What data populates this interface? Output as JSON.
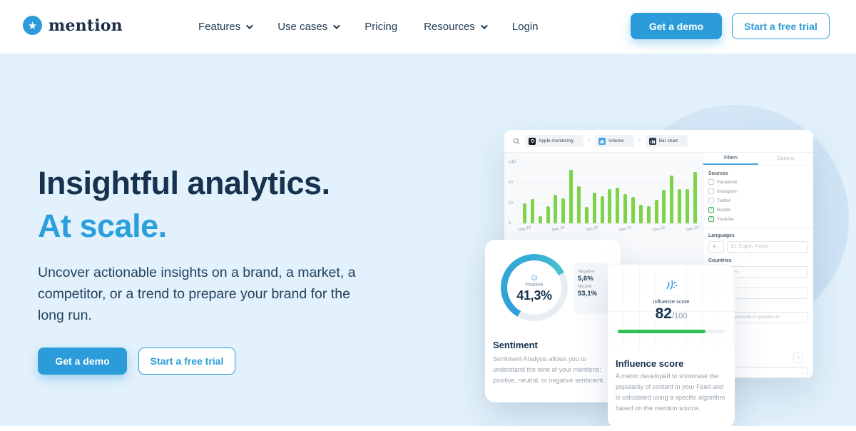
{
  "brand": {
    "name": "mention"
  },
  "nav": {
    "items": [
      {
        "label": "Features",
        "dropdown": true
      },
      {
        "label": "Use cases",
        "dropdown": true
      },
      {
        "label": "Pricing",
        "dropdown": false
      },
      {
        "label": "Resources",
        "dropdown": true
      },
      {
        "label": "Login",
        "dropdown": false
      }
    ]
  },
  "header": {
    "demo_button": "Get a demo",
    "trial_button": "Start a free trial"
  },
  "hero": {
    "title_line1": "Insightful analytics.",
    "title_line2": "At scale.",
    "description": "Uncover actionable insights on a brand, a market, a competitor, or a trend to prepare your brand for the long run.",
    "demo_button": "Get a demo",
    "trial_button": "Start a free trial"
  },
  "dashboard": {
    "chips": [
      {
        "label": "Apple monitoring",
        "glyph": "ring",
        "color": "#1b1f24"
      },
      {
        "label": "Volume",
        "glyph": "bars",
        "color": "#4da3e3"
      },
      {
        "label": "Bar chart",
        "glyph": "bars",
        "color": "#2c3e50"
      }
    ],
    "chip_separators": [
      "+",
      "="
    ],
    "panel": {
      "tabs": [
        {
          "label": "Filters",
          "active": true
        },
        {
          "label": "Options",
          "active": false
        }
      ],
      "sources_title": "Sources",
      "sources": [
        {
          "label": "Facebook",
          "checked": false
        },
        {
          "label": "Instagram",
          "checked": false
        },
        {
          "label": "Twitter",
          "checked": false
        },
        {
          "label": "Reddit",
          "checked": true
        },
        {
          "label": "Youtube",
          "checked": true
        }
      ],
      "languages_title": "Languages",
      "languages_placeholder": "Ex. English, French",
      "countries_title": "Countries",
      "countries_value": "United States",
      "tags_placeholder": "tags",
      "keyword_placeholder": "ed, or an expression in quotation m"
    },
    "chart_data": {
      "type": "bar",
      "title": "Volume",
      "x": [
        "Dec 18",
        "Dec 19",
        "Dec 20",
        "Dec 21",
        "Dec 22",
        "Dec 23"
      ],
      "values": [
        20,
        24,
        7,
        17,
        28,
        25,
        53,
        37,
        16,
        30,
        27,
        34,
        35,
        29,
        26,
        18,
        17,
        23,
        33,
        47,
        34,
        34,
        51
      ],
      "ylim": [
        0,
        60
      ],
      "yticks": [
        0,
        20,
        40,
        60
      ],
      "bar_color": "#7ed348",
      "grid": true,
      "legend": "none",
      "xlabel": "",
      "ylabel": ""
    }
  },
  "sentiment_card": {
    "donut": {
      "label": "Positive",
      "value": "41,3%"
    },
    "stats": [
      {
        "label": "Negative",
        "value": "5,6%"
      },
      {
        "label": "Neutral",
        "value": "53,1%"
      }
    ],
    "title": "Sentiment",
    "description": "Sentiment Analysis allows you to understand the tone of your mentions: positive, neutral, or negative sentiment."
  },
  "influence_card": {
    "icon_label": "Influence score",
    "score": "82",
    "score_max": "/100",
    "progress_percent": 82,
    "title": "Influence score",
    "description": "A metric developed to showcase the popularity of content in your Feed and is calculated using a specific algorithm based on the mention source."
  },
  "colors": {
    "accent_blue": "#2b9cd9",
    "heading_navy": "#16324f",
    "hero_background": "#e2f1fb",
    "bar_green": "#7ed348",
    "progress_green": "#2fc156"
  }
}
